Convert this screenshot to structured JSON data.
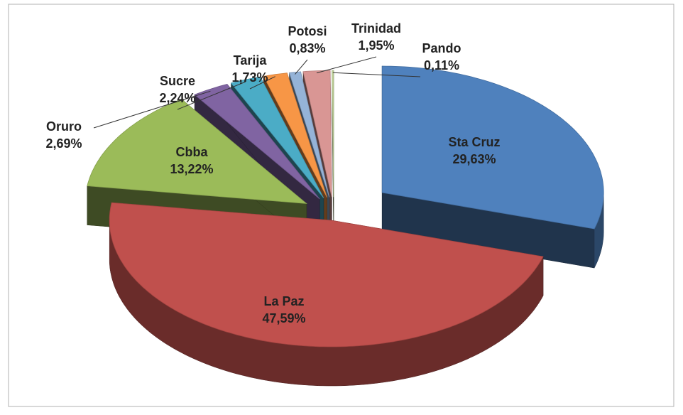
{
  "chart_data": {
    "type": "pie",
    "categories": [
      "Sta Cruz",
      "La Paz",
      "Cbba",
      "Oruro",
      "Sucre",
      "Tarija",
      "Potosi",
      "Trinidad",
      "Pando"
    ],
    "values": [
      29.63,
      47.59,
      13.22,
      2.69,
      2.24,
      1.73,
      0.83,
      1.95,
      0.11
    ],
    "value_labels": [
      "29,63%",
      "47,59%",
      "13,22%",
      "2,69%",
      "2,24%",
      "1,73%",
      "0,83%",
      "1,95%",
      "0,11%"
    ],
    "colors": [
      "#4f81bd",
      "#c0504d",
      "#9bbb59",
      "#8064a2",
      "#4bacc6",
      "#f79646",
      "#95b3d7",
      "#d99694",
      "#c3d69b"
    ]
  }
}
